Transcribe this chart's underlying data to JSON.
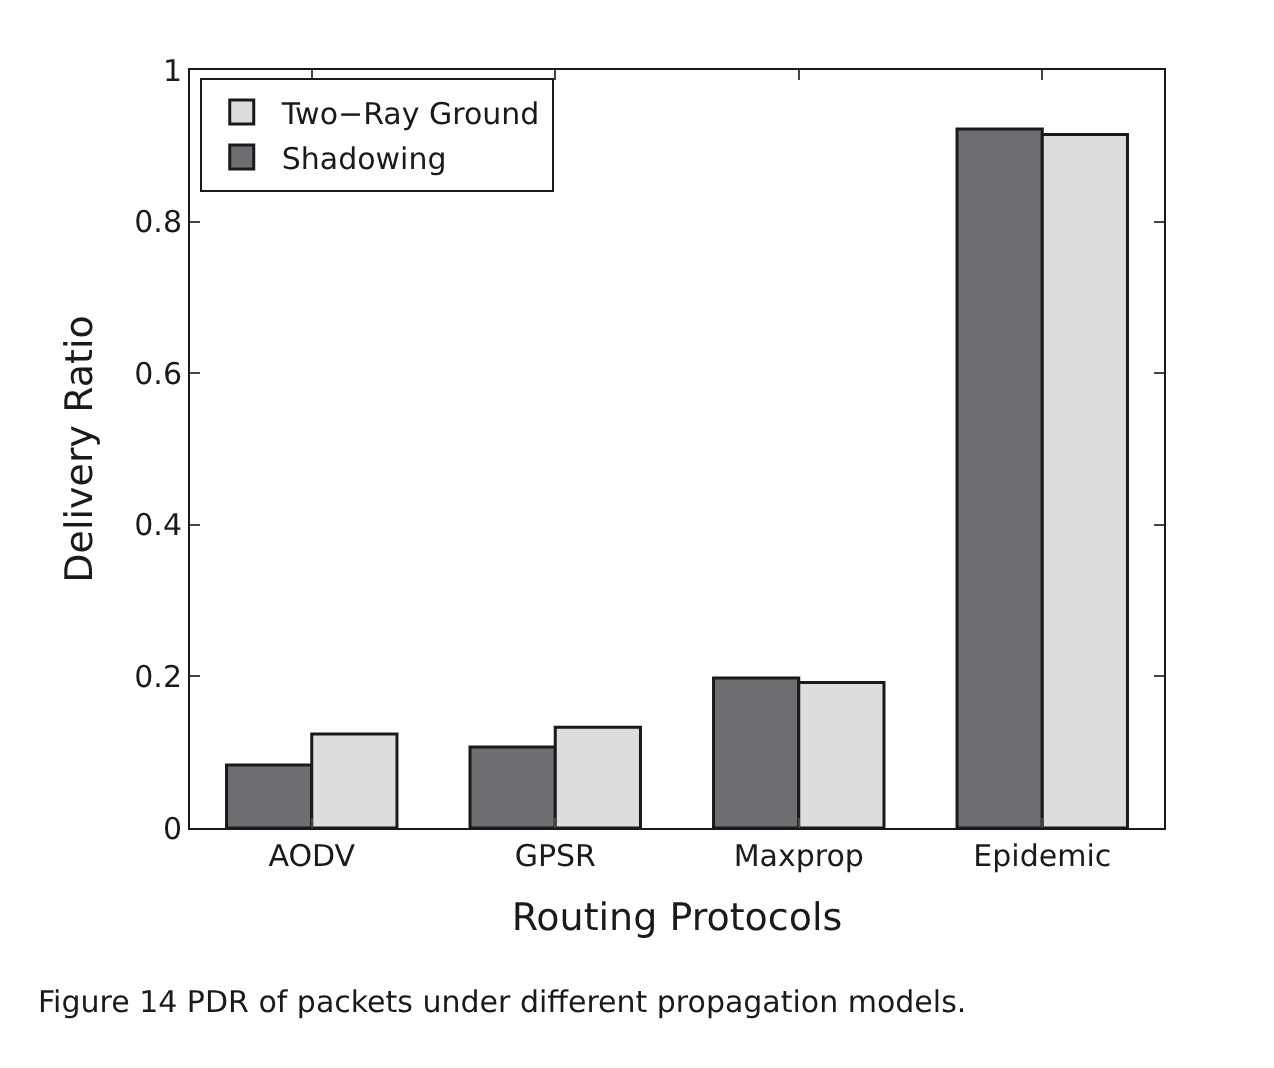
{
  "chart_data": {
    "type": "bar",
    "xlabel": "Routing Protocols",
    "ylabel": "Delivery Ratio",
    "categories": [
      "AODV",
      "GPSR",
      "Maxprop",
      "Epidemic"
    ],
    "series": [
      {
        "name": "Shadowing",
        "color": "#6d6e71",
        "values": [
          0.083,
          0.107,
          0.198,
          0.922
        ]
      },
      {
        "name": "Two−Ray Ground",
        "color": "#dcdddf",
        "values": [
          0.124,
          0.133,
          0.192,
          0.915
        ]
      }
    ],
    "ylim": [
      0,
      1
    ],
    "yticks": [
      0,
      0.2,
      0.4,
      0.6,
      0.8,
      1
    ],
    "legend": "top left",
    "annotations": [
      "Figure 14 PDR of packets under different propagation models."
    ]
  }
}
